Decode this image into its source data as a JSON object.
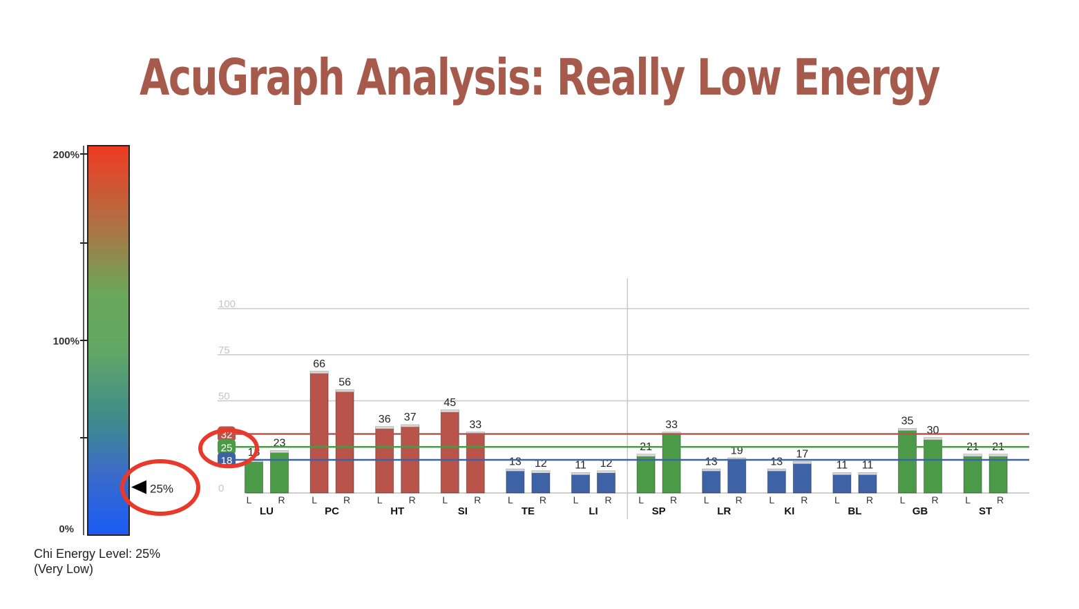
{
  "title": "AcuGraph Analysis: Really Low Energy",
  "colors": {
    "title": "#a65a4b",
    "red": "#b8544a",
    "green": "#4a9a48",
    "blue": "#3d62a6",
    "highlight": "#e8392b"
  },
  "gauge": {
    "ticks": [
      "200%",
      "100%",
      "0%"
    ],
    "pointer_label": "25%",
    "level": 0.25,
    "caption_line1": "Chi Energy Level: 25%",
    "caption_line2": "(Very Low)"
  },
  "chart_data": {
    "type": "bar",
    "ylim": [
      0,
      100
    ],
    "y_gridlines": [
      0,
      25,
      50,
      75,
      100
    ],
    "y_tick_labels": [
      "0",
      "25",
      "50",
      "75",
      "100"
    ],
    "reference_lines": [
      {
        "label": "32",
        "value": 32,
        "color": "red"
      },
      {
        "label": "25",
        "value": 25,
        "color": "green"
      },
      {
        "label": "18",
        "value": 18,
        "color": "blue"
      }
    ],
    "categories": [
      "LU",
      "PC",
      "HT",
      "SI",
      "TE",
      "LI",
      "SP",
      "LR",
      "KI",
      "BL",
      "GB",
      "ST"
    ],
    "sub_labels": [
      "L",
      "R"
    ],
    "series": [
      {
        "name": "L",
        "values": [
          18,
          66,
          36,
          45,
          13,
          11,
          21,
          13,
          13,
          11,
          35,
          21
        ]
      },
      {
        "name": "R",
        "values": [
          23,
          56,
          37,
          33,
          12,
          12,
          33,
          19,
          17,
          11,
          30,
          21
        ]
      }
    ],
    "bar_colors": [
      "green",
      "red",
      "red",
      "red",
      "blue",
      "blue",
      "green",
      "blue",
      "blue",
      "blue",
      "green",
      "green"
    ],
    "divider_after": "LI"
  }
}
